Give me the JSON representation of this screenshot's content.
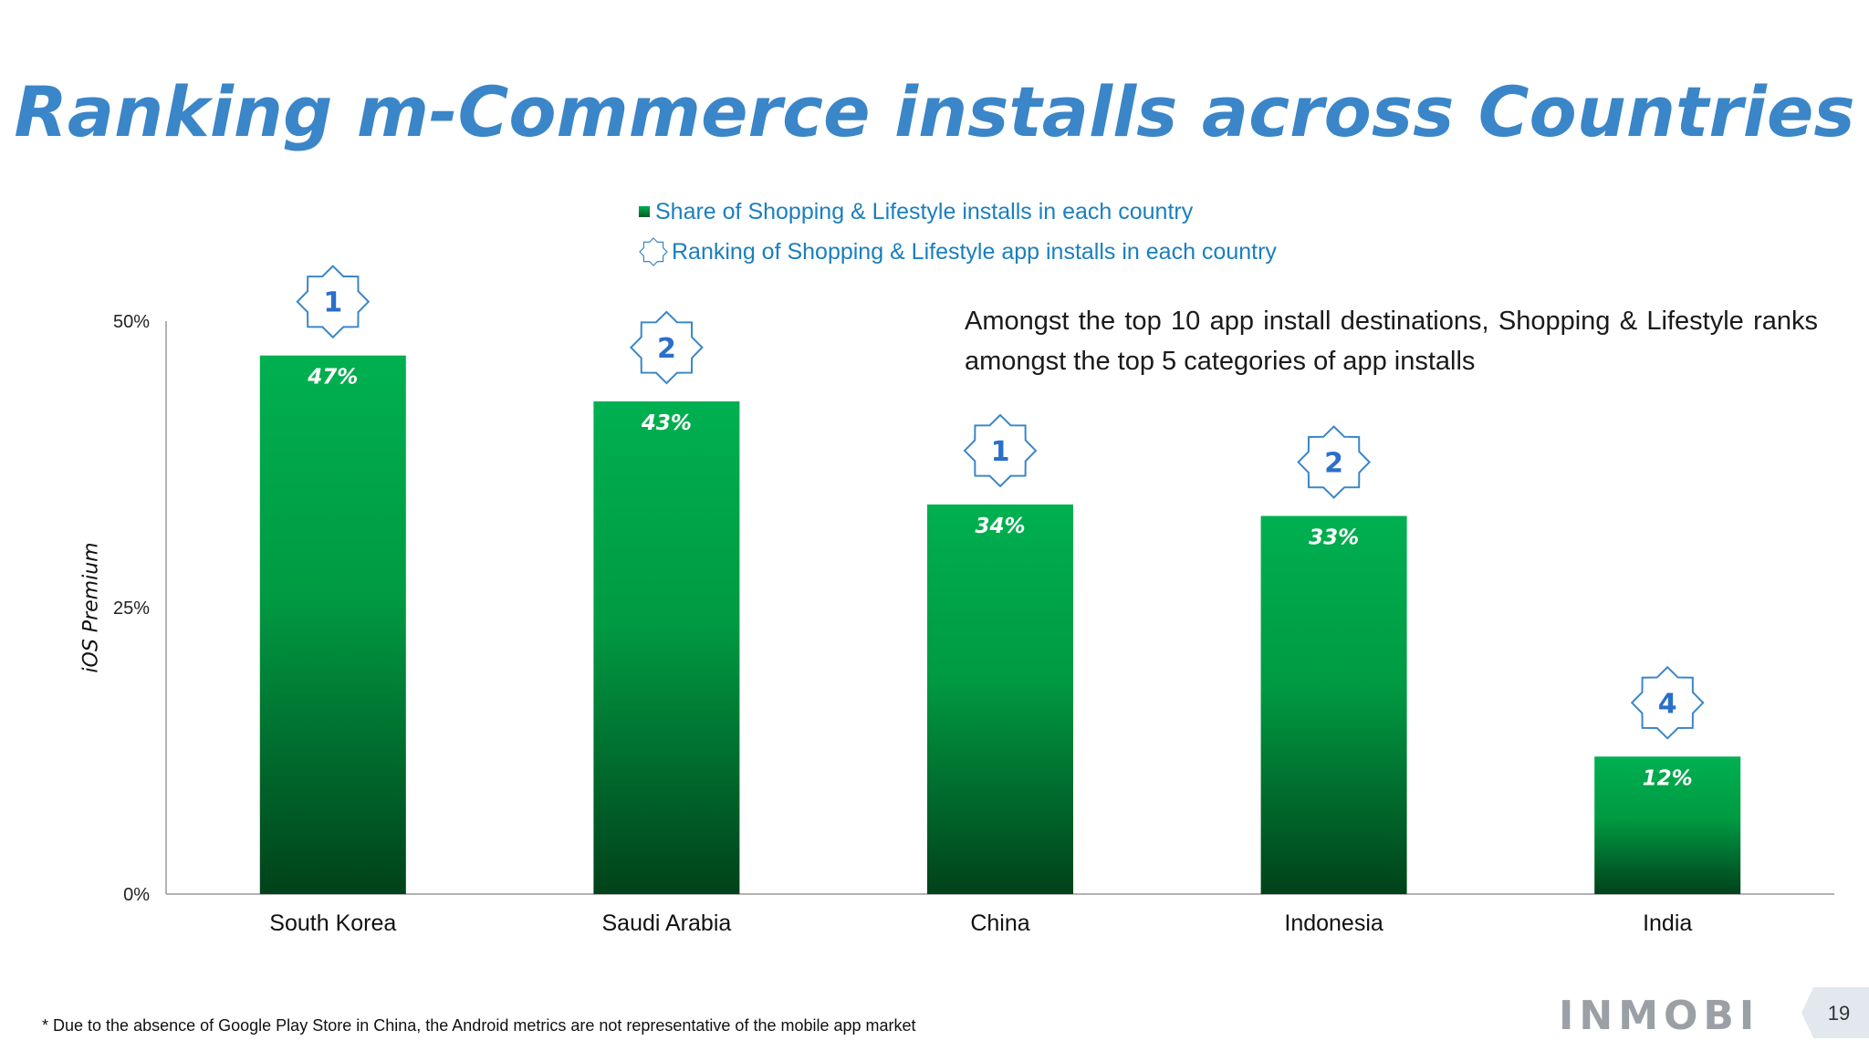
{
  "slide": {
    "title": "Ranking m-Commerce installs across Countries",
    "callout": "Amongst the top 10 app install destinations, Shopping & Lifestyle ranks amongst the top 5 categories of app installs",
    "footnote": "* Due to the absence of Google Play Store in China, the Android metrics are not representative of the mobile app market",
    "logo": "INMOBI",
    "page_number": "19"
  },
  "colors": {
    "title": "#3a86c8",
    "bar_top": "#00b050",
    "bar_bottom": "#00421a",
    "legend_text": "#1a7fbf",
    "rank_star_stroke": "#3a86c8",
    "rank_text": "#2a6fc9"
  },
  "chart_data": {
    "type": "bar",
    "categories": [
      "South Korea",
      "Saudi Arabia",
      "China",
      "Indonesia",
      "India"
    ],
    "series": [
      {
        "name": "Share of Shopping & Lifestyle installs in each country",
        "values": [
          47,
          43,
          34,
          33,
          12
        ],
        "labels": [
          "47%",
          "43%",
          "34%",
          "33%",
          "12%"
        ]
      }
    ],
    "rankings": {
      "name": "Ranking of Shopping & Lifestyle app installs in each country",
      "values": [
        1,
        2,
        1,
        2,
        4
      ]
    },
    "ylabel": "iOS Premium",
    "ylim": [
      0,
      50
    ],
    "yticks": [
      0,
      25,
      50
    ],
    "ytick_labels": [
      "0%",
      "25%",
      "50%"
    ],
    "legend_position": "top",
    "grid": false
  }
}
